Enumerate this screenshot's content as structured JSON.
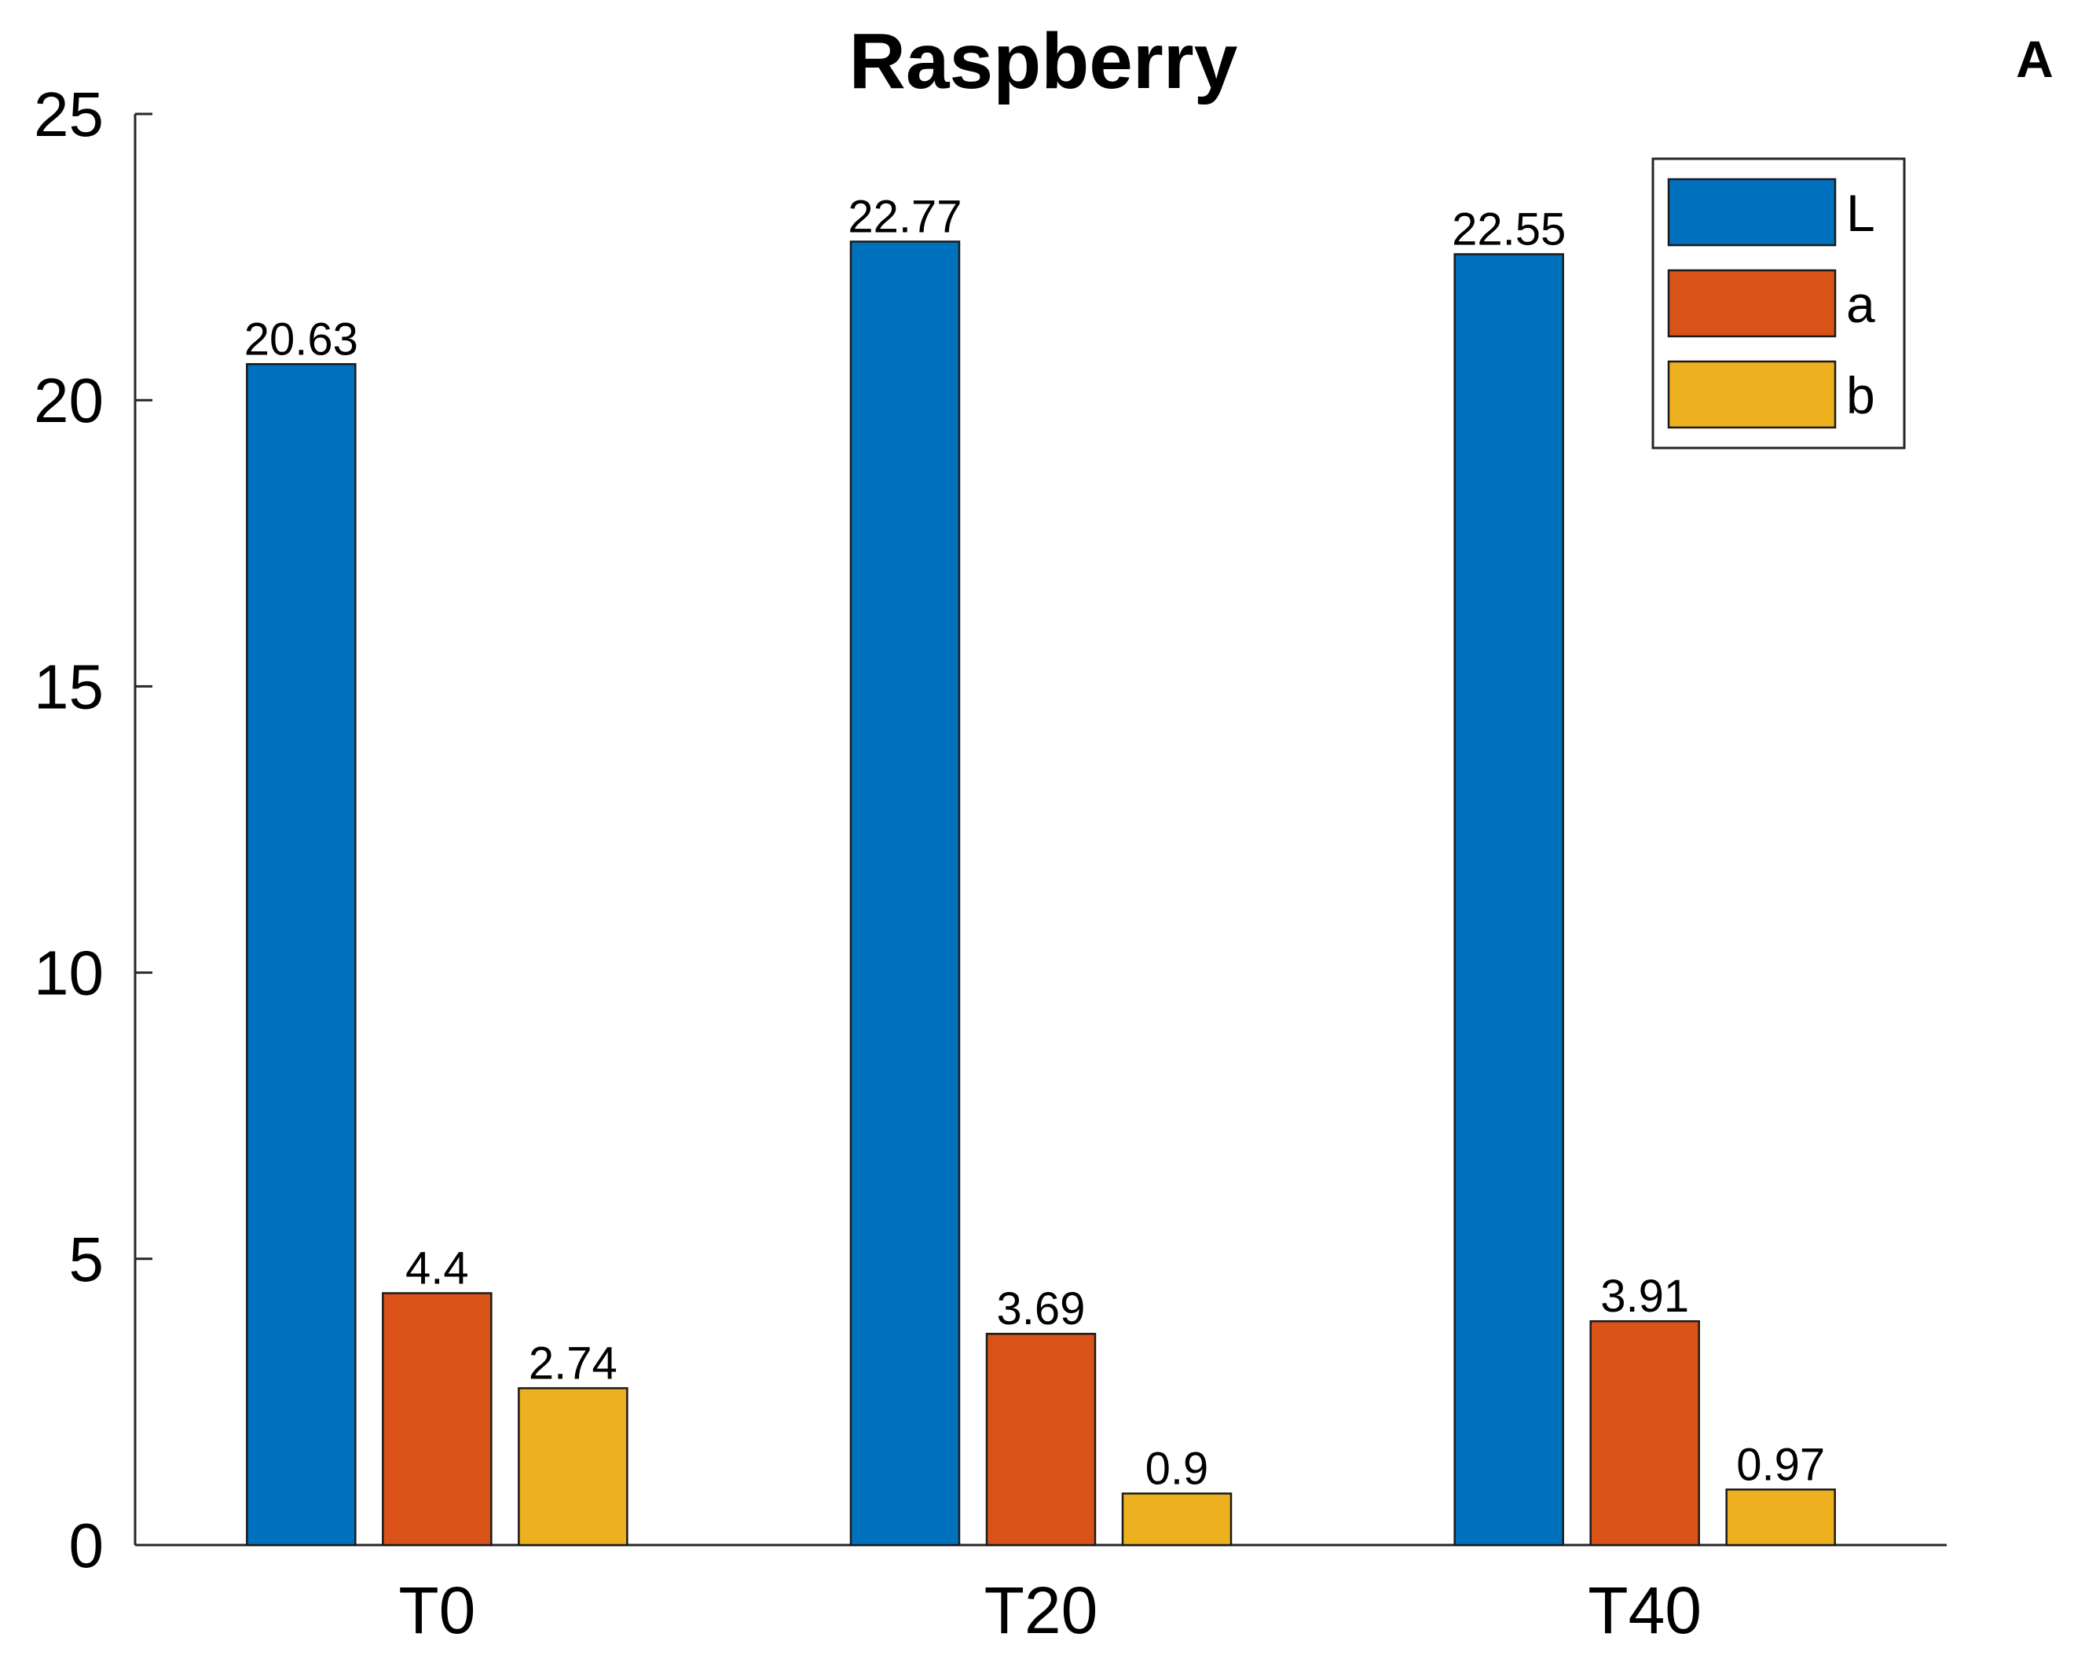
{
  "chart_data": {
    "type": "bar",
    "title": "Raspberry",
    "panel_label": "A",
    "categories": [
      "T0",
      "T20",
      "T40"
    ],
    "series": [
      {
        "name": "L",
        "values": [
          20.63,
          22.77,
          22.55
        ],
        "labels": [
          "20.63",
          "22.77",
          "22.55"
        ],
        "color": "#0072BD"
      },
      {
        "name": "a",
        "values": [
          4.4,
          3.69,
          3.91
        ],
        "labels": [
          "4.4",
          "3.69",
          "3.91"
        ],
        "color": "#D95319"
      },
      {
        "name": "b",
        "values": [
          2.74,
          0.9,
          0.97
        ],
        "labels": [
          "2.74",
          "0.9",
          "0.97"
        ],
        "color": "#EDB120"
      }
    ],
    "ylim": [
      0,
      25
    ],
    "yticks": [
      0,
      5,
      10,
      15,
      20,
      25
    ],
    "xlabel": "",
    "ylabel": "",
    "grid": false,
    "legend_position": "top-right"
  }
}
